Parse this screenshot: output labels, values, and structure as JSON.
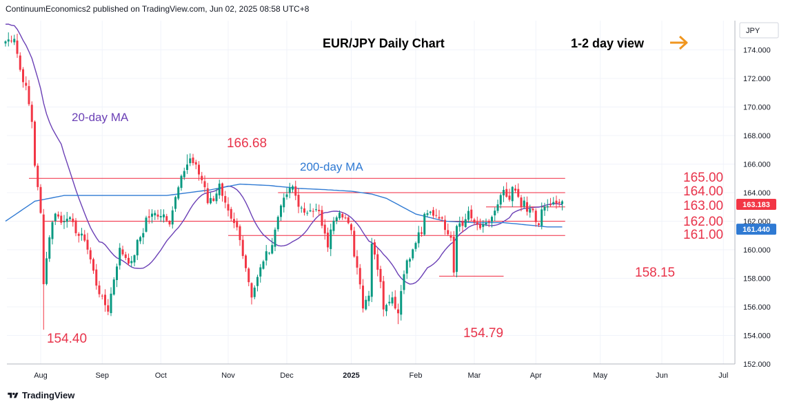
{
  "header": {
    "text": "ContinuumEconomics2 published on TradingView.com, Jun 02, 2025 08:58 UTC+8"
  },
  "footer": {
    "brand": "TradingView"
  },
  "chart_data": {
    "type": "candlestick",
    "title": "EUR/JPY Daily Chart",
    "view_label": "1-2 day view",
    "currency": "JPY",
    "ylim": [
      152.0,
      175.6
    ],
    "y_ticks": [
      "152.000",
      "154.000",
      "156.000",
      "158.000",
      "160.000",
      "162.000",
      "164.000",
      "166.000",
      "168.000",
      "170.000",
      "172.000",
      "174.000"
    ],
    "x_ticks": [
      {
        "label": "Aug",
        "day": 12,
        "bold": false
      },
      {
        "label": "Sep",
        "day": 33,
        "bold": false
      },
      {
        "label": "Oct",
        "day": 53,
        "bold": false
      },
      {
        "label": "Nov",
        "day": 76,
        "bold": false
      },
      {
        "label": "Dec",
        "day": 96,
        "bold": false
      },
      {
        "label": "2025",
        "day": 118,
        "bold": true
      },
      {
        "label": "Feb",
        "day": 140,
        "bold": false
      },
      {
        "label": "Mar",
        "day": 160,
        "bold": false
      },
      {
        "label": "Apr",
        "day": 181,
        "bold": false
      },
      {
        "label": "May",
        "day": 203,
        "bold": false
      },
      {
        "label": "Jun",
        "day": 224,
        "bold": false
      },
      {
        "label": "Jul",
        "day": 245,
        "bold": false
      }
    ],
    "close_anchors": [
      [
        0,
        174.6
      ],
      [
        3,
        174.9
      ],
      [
        5,
        172.6
      ],
      [
        7,
        171.3
      ],
      [
        9,
        169.0
      ],
      [
        10,
        166.0
      ],
      [
        12,
        162.5
      ],
      [
        13,
        157.8
      ],
      [
        15,
        161.0
      ],
      [
        17,
        162.7
      ],
      [
        19,
        161.9
      ],
      [
        21,
        162.4
      ],
      [
        25,
        161.0
      ],
      [
        27,
        160.8
      ],
      [
        29,
        159.3
      ],
      [
        31,
        157.6
      ],
      [
        33,
        156.5
      ],
      [
        35,
        155.8
      ],
      [
        37,
        158.0
      ],
      [
        39,
        160.0
      ],
      [
        41,
        159.5
      ],
      [
        43,
        159.0
      ],
      [
        45,
        160.5
      ],
      [
        47,
        161.3
      ],
      [
        48,
        162.2
      ],
      [
        51,
        162.5
      ],
      [
        54,
        162.5
      ],
      [
        56,
        162.0
      ],
      [
        58,
        163.6
      ],
      [
        59,
        164.3
      ],
      [
        61,
        165.6
      ],
      [
        63,
        166.4
      ],
      [
        65,
        165.8
      ],
      [
        66,
        165.3
      ],
      [
        68,
        164.5
      ],
      [
        69,
        163.4
      ],
      [
        71,
        163.6
      ],
      [
        73,
        164.5
      ],
      [
        74,
        163.6
      ],
      [
        77,
        162.0
      ],
      [
        79,
        161.5
      ],
      [
        81,
        159.8
      ],
      [
        84,
        156.8
      ],
      [
        86,
        158.0
      ],
      [
        88,
        159.3
      ],
      [
        91,
        160.4
      ],
      [
        94,
        163.3
      ],
      [
        95,
        163.4
      ],
      [
        96,
        163.9
      ],
      [
        98,
        164.4
      ],
      [
        100,
        163.2
      ],
      [
        102,
        162.4
      ],
      [
        104,
        163.0
      ],
      [
        107,
        162.6
      ],
      [
        108,
        161.6
      ],
      [
        110,
        160.3
      ],
      [
        112,
        162.2
      ],
      [
        114,
        162.8
      ],
      [
        116,
        162.2
      ],
      [
        118,
        161.2
      ],
      [
        119,
        159.7
      ],
      [
        121,
        157.8
      ],
      [
        122,
        156.0
      ],
      [
        124,
        157.0
      ],
      [
        125,
        160.5
      ],
      [
        126,
        159.8
      ],
      [
        128,
        157.6
      ],
      [
        129,
        156.0
      ],
      [
        131,
        156.6
      ],
      [
        132,
        156.6
      ],
      [
        134,
        155.6
      ],
      [
        135,
        157.3
      ],
      [
        137,
        159.3
      ],
      [
        139,
        159.9
      ],
      [
        141,
        161.1
      ],
      [
        142,
        161.2
      ],
      [
        143,
        162.3
      ],
      [
        145,
        162.6
      ],
      [
        146,
        162.5
      ],
      [
        148,
        162.4
      ],
      [
        150,
        161.6
      ],
      [
        152,
        161.0
      ],
      [
        153,
        158.5
      ],
      [
        154,
        161.9
      ],
      [
        156,
        161.7
      ],
      [
        158,
        162.7
      ],
      [
        159,
        162.0
      ],
      [
        161,
        161.8
      ],
      [
        163,
        161.6
      ],
      [
        164,
        161.8
      ],
      [
        166,
        162.1
      ],
      [
        168,
        163.2
      ],
      [
        169,
        163.6
      ],
      [
        170,
        164.0
      ],
      [
        172,
        163.5
      ],
      [
        173,
        164.3
      ],
      [
        174,
        164.0
      ],
      [
        176,
        163.0
      ],
      [
        177,
        163.2
      ],
      [
        178,
        162.6
      ],
      [
        180,
        162.8
      ],
      [
        182,
        161.5
      ],
      [
        183,
        162.8
      ],
      [
        185,
        163.1
      ],
      [
        186,
        163.0
      ],
      [
        187,
        163.2
      ],
      [
        189,
        163.3
      ],
      [
        190,
        163.2
      ]
    ],
    "candle_days": 191,
    "extremes": [
      {
        "label": "166.68",
        "day": 62,
        "value": 166.68,
        "kind": "high"
      },
      {
        "label": "154.40",
        "day": 13,
        "value": 154.4,
        "kind": "low"
      },
      {
        "label": "154.79",
        "day": 134,
        "value": 154.79,
        "kind": "low"
      },
      {
        "label": "158.15",
        "day": 153,
        "value": 158.15,
        "kind": "low"
      }
    ],
    "levels": [
      {
        "label": "165.00",
        "value": 165.0,
        "from_day": 8,
        "to_day": 191
      },
      {
        "label": "164.00",
        "value": 164.0,
        "from_day": 93,
        "to_day": 191
      },
      {
        "label": "163.00",
        "value": 163.0,
        "from_day": 164,
        "to_day": 191
      },
      {
        "label": "162.00",
        "value": 162.0,
        "from_day": 13,
        "to_day": 191
      },
      {
        "label": "161.00",
        "value": 161.0,
        "from_day": 76,
        "to_day": 191
      },
      {
        "label": "158.15",
        "value": 158.15,
        "from_day": 148,
        "to_day": 170
      }
    ],
    "ma20_label": "20-day MA",
    "ma200_label": "200-day MA",
    "ma200_anchors": [
      [
        0,
        162.0
      ],
      [
        10,
        163.4
      ],
      [
        20,
        163.8
      ],
      [
        40,
        163.8
      ],
      [
        55,
        163.8
      ],
      [
        70,
        164.2
      ],
      [
        80,
        164.6
      ],
      [
        90,
        164.5
      ],
      [
        100,
        164.3
      ],
      [
        110,
        164.2
      ],
      [
        118,
        164.1
      ],
      [
        125,
        163.9
      ],
      [
        130,
        163.6
      ],
      [
        140,
        162.5
      ],
      [
        150,
        162.0
      ],
      [
        160,
        161.9
      ],
      [
        170,
        161.9
      ],
      [
        180,
        161.7
      ],
      [
        185,
        161.6
      ],
      [
        191,
        161.6
      ]
    ],
    "last_price": {
      "label": "163.183",
      "value": 163.183
    },
    "ma_last": {
      "label": "161.440",
      "value": 161.44
    },
    "colors": {
      "up": "#089981",
      "down": "#f23645",
      "ma20": "#6a3fb5",
      "ma200": "#2f7ad3",
      "level": "#f0263d",
      "annotation": "#e8334a",
      "arrow": "#f0961f"
    }
  }
}
